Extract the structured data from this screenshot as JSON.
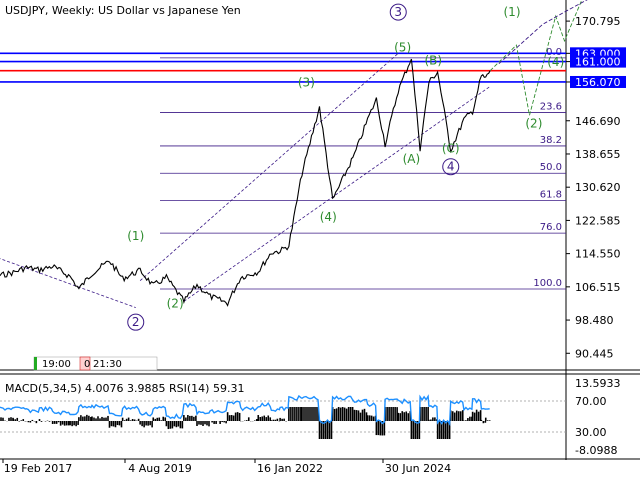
{
  "window": {
    "symbol_title": "USDJPY, Weekly:  US Dollar vs Japanese Yen",
    "macd_title": "MACD(5,34,5) 4.0076 3.9885 RSI(14) 59.31"
  },
  "chart_data": {
    "type": "line",
    "title": "USDJPY, Weekly:  US Dollar vs Japanese Yen",
    "price_axis": {
      "ticks": [
        "170.795",
        "163.000",
        "161.000",
        "156.070",
        "146.690",
        "138.655",
        "130.620",
        "122.585",
        "114.550",
        "106.515",
        "98.480",
        "90.445"
      ],
      "ylim": [
        86.4,
        175.9
      ]
    },
    "time_axis": {
      "ticks": [
        "19 Feb 2017",
        "4 Aug 2019",
        "16 Jan 2022",
        "30 Jun 2024"
      ]
    },
    "price_series": {
      "name": "USDJPY",
      "points": [
        [
          "2016-02",
          114.0
        ],
        [
          "2016-06",
          108.5
        ],
        [
          "2016-12",
          110.0
        ],
        [
          "2017-03",
          111.2
        ],
        [
          "2017-06",
          110.6
        ],
        [
          "2017-09",
          111.5
        ],
        [
          "2018-01",
          109.0
        ],
        [
          "2018-03",
          106.0
        ],
        [
          "2018-06",
          109.8
        ],
        [
          "2018-10",
          112.8
        ],
        [
          "2019-01",
          108.5
        ],
        [
          "2019-05",
          110.5
        ],
        [
          "2019-08",
          106.8
        ],
        [
          "2019-11",
          108.8
        ],
        [
          "2020-03",
          103.0
        ],
        [
          "2020-06",
          107.0
        ],
        [
          "2020-09",
          104.2
        ],
        [
          "2021-01",
          102.6
        ],
        [
          "2021-04",
          108.8
        ],
        [
          "2021-08",
          110.2
        ],
        [
          "2021-11",
          114.8
        ],
        [
          "2022-01",
          115.2
        ],
        [
          "2022-03",
          116.5
        ],
        [
          "2022-06",
          134.0
        ],
        [
          "2022-10",
          150.0
        ],
        [
          "2023-01",
          127.5
        ],
        [
          "2023-06",
          138.5
        ],
        [
          "2023-09",
          147.0
        ],
        [
          "2023-11",
          151.9
        ],
        [
          "2024-01",
          141.0
        ],
        [
          "2024-04",
          154.0
        ],
        [
          "2024-07",
          161.9
        ],
        [
          "2024-09",
          140.0
        ],
        [
          "2024-11",
          156.0
        ],
        [
          "2025-01",
          158.5
        ],
        [
          "2025-04",
          139.6
        ],
        [
          "2025-07",
          147.0
        ],
        [
          "2025-09",
          149.0
        ],
        [
          "2025-11",
          157.5
        ],
        [
          "2025-12",
          157.0
        ],
        [
          "2026-01",
          158.8
        ]
      ]
    },
    "horizontal_levels": [
      {
        "value": 163.0,
        "label": "163.000",
        "color": "#0000ff"
      },
      {
        "value": 161.0,
        "label": "161.000",
        "color": "#0000ff"
      },
      {
        "value": 158.8,
        "label": "",
        "color": "#ff0000"
      },
      {
        "value": 156.07,
        "label": "156.070",
        "color": "#0000ff"
      }
    ],
    "fibonacci": [
      {
        "label": "0.0",
        "value": 161.9
      },
      {
        "label": "23.6",
        "value": 148.7
      },
      {
        "label": "38.2",
        "value": 140.6
      },
      {
        "label": "50.0",
        "value": 134.0
      },
      {
        "label": "61.8",
        "value": 127.4
      },
      {
        "label": "76.0",
        "value": 119.5
      },
      {
        "label": "100.0",
        "value": 106.0
      }
    ],
    "wave_labels": [
      {
        "text": "(1)",
        "date": "2019-04",
        "price": 117.8,
        "color": "#2e8b2e",
        "circled": false
      },
      {
        "text": "2",
        "date": "2019-04",
        "price": 97.0,
        "color": "#3b1a86",
        "circled": true
      },
      {
        "text": "(2)",
        "date": "2020-01",
        "price": 101.5,
        "color": "#2e8b2e",
        "circled": false
      },
      {
        "text": "(3)",
        "date": "2022-07",
        "price": 155.0,
        "color": "#2e8b2e",
        "circled": false
      },
      {
        "text": "(4)",
        "date": "2022-12",
        "price": 122.5,
        "color": "#2e8b2e",
        "circled": false
      },
      {
        "text": "3",
        "date": "2024-04",
        "price": 172.0,
        "color": "#3b1a86",
        "circled": true
      },
      {
        "text": "(5)",
        "date": "2024-05",
        "price": 163.5,
        "color": "#2e8b2e",
        "circled": false
      },
      {
        "text": "(B)",
        "date": "2024-12",
        "price": 160.3,
        "color": "#2e8b2e",
        "circled": false
      },
      {
        "text": "(A)",
        "date": "2024-07",
        "price": 136.5,
        "color": "#2e8b2e",
        "circled": false
      },
      {
        "text": "(C)",
        "date": "2025-04",
        "price": 139.0,
        "color": "#2e8b2e",
        "circled": false
      },
      {
        "text": "4",
        "date": "2025-04",
        "price": 134.6,
        "color": "#3b1a86",
        "circled": true
      },
      {
        "text": "(1)",
        "date": "2026-06",
        "price": 172.0,
        "color": "#2e8b2e",
        "circled": false
      },
      {
        "text": "(4)",
        "date": "2027-04",
        "price": 159.9,
        "color": "#2e8b2e",
        "circled": false
      },
      {
        "text": "(2)",
        "date": "2026-11",
        "price": 145.0,
        "color": "#2e8b2e",
        "circled": false
      }
    ],
    "wave_path_projection": [
      [
        "2026-01",
        158.8
      ],
      [
        "2026-07",
        165.0
      ],
      [
        "2026-10",
        148.0
      ],
      [
        "2027-04",
        172.0
      ],
      [
        "2027-06",
        166.0
      ],
      [
        "2027-10",
        176.0
      ]
    ],
    "wave_path_projection_alt": [
      [
        "2026-03",
        160.5
      ],
      [
        "2027-01",
        170.0
      ],
      [
        "2027-06",
        173.0
      ],
      [
        "2028-01",
        177.0
      ]
    ],
    "channel_upper": [
      [
        "2019-05",
        108.0
      ],
      [
        "2024-04",
        163.0
      ]
    ],
    "channel_lower": [
      [
        "2020-03",
        103.0
      ],
      [
        "2026-01",
        155.0
      ]
    ],
    "old_trend": [
      [
        "2016-02",
        116.0
      ],
      [
        "2019-04",
        101.5
      ]
    ],
    "indicator": {
      "name": "MACD(5,34,5) 4.0076 3.9885 RSI(14) 59.31",
      "macd": 4.0076,
      "signal": 3.9885,
      "rsi": 59.31,
      "axis_ticks": [
        "13.5933",
        "70.00",
        "30.00",
        "-8.0988"
      ],
      "ylim": [
        -8.0988,
        13.5933
      ]
    },
    "time_markers": [
      "19:00",
      "0",
      "21:30"
    ]
  }
}
